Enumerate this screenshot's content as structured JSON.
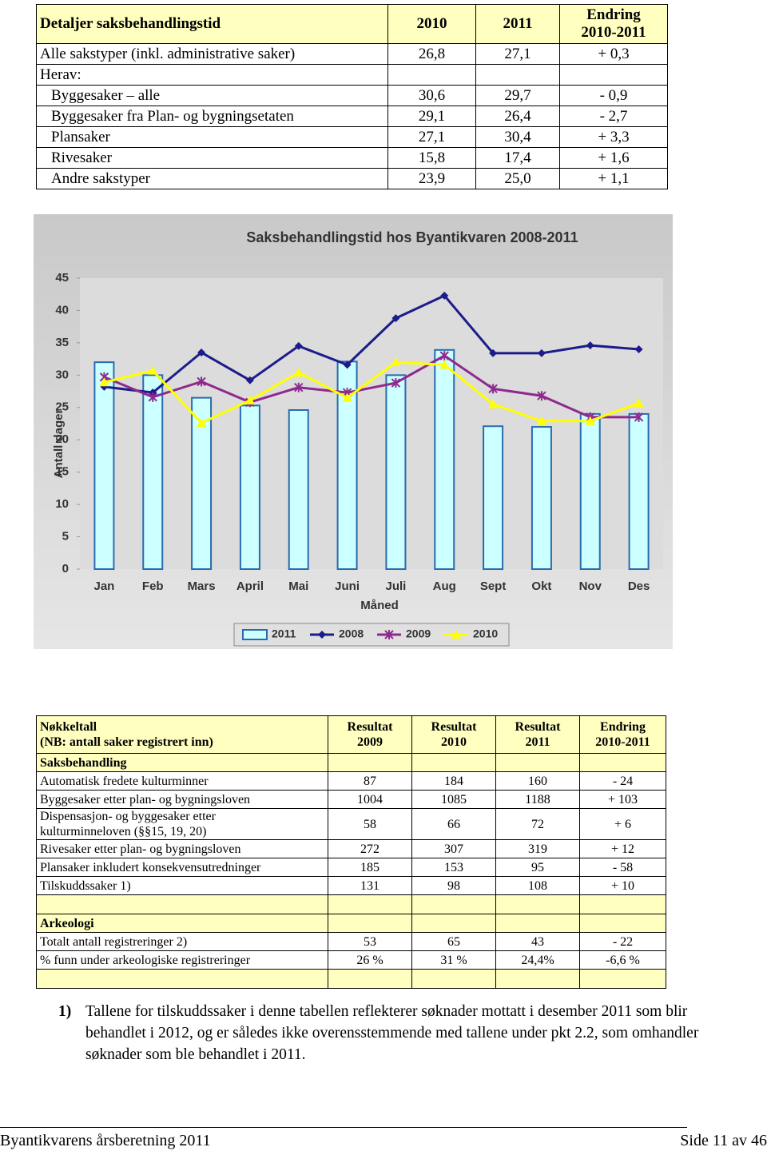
{
  "table1": {
    "header": [
      "Detaljer saksbehandlingstid",
      "2010",
      "2011",
      [
        "Endring",
        "2010-2011"
      ]
    ],
    "rows": [
      [
        "Alle sakstyper (inkl. administrative saker)",
        "26,8",
        "27,1",
        "+ 0,3"
      ],
      [
        "Herav:"
      ],
      [
        "Byggesaker – alle",
        "30,6",
        "29,7",
        "- 0,9"
      ],
      [
        "Byggesaker fra Plan- og bygningsetaten",
        "29,1",
        "26,4",
        "- 2,7"
      ],
      [
        "Plansaker",
        "27,1",
        "30,4",
        "+ 3,3"
      ],
      [
        "Rivesaker",
        "15,8",
        "17,4",
        "+ 1,6"
      ],
      [
        "Andre sakstyper",
        "23,9",
        "25,0",
        "+ 1,1"
      ]
    ]
  },
  "chart_data": {
    "type": "bar",
    "title": "Saksbehandlingstid hos Byantikvaren 2008-2011",
    "x_label": "Måned",
    "y_label": "Antall dager",
    "categories": [
      "Jan",
      "Feb",
      "Mars",
      "April",
      "Mai",
      "Juni",
      "Juli",
      "Aug",
      "Sept",
      "Okt",
      "Nov",
      "Des"
    ],
    "series": [
      {
        "name": "2011",
        "type": "bar",
        "color": "#ccffff",
        "stroke": "#2a6bb0",
        "values": [
          32,
          30,
          26.5,
          25.3,
          24.6,
          32.1,
          30,
          33.9,
          22.1,
          22,
          24,
          24
        ]
      },
      {
        "name": "2008",
        "type": "line",
        "marker": "diamond",
        "color": "#1c1c8a",
        "values": [
          28.2,
          27.3,
          33.5,
          29.2,
          34.5,
          31.6,
          38.8,
          42.3,
          33.4,
          33.4,
          34.6,
          34
        ]
      },
      {
        "name": "2009",
        "type": "line",
        "marker": "star",
        "color": "#8e2a8e",
        "values": [
          29.7,
          26.6,
          29,
          25.8,
          28.1,
          27.3,
          28.8,
          33,
          27.9,
          26.8,
          23.5,
          23.5
        ]
      },
      {
        "name": "2010",
        "type": "line",
        "marker": "triangle",
        "color": "#ffff00",
        "values": [
          28.9,
          30.7,
          22.6,
          26.1,
          30.4,
          26.5,
          32,
          31.6,
          25.5,
          22.9,
          22.9,
          25.7
        ]
      }
    ],
    "ylim": [
      0,
      45
    ],
    "yticks": [
      0,
      5,
      10,
      15,
      20,
      25,
      30,
      35,
      40,
      45
    ],
    "grid": false,
    "legend": "bottom"
  },
  "table2": {
    "header": [
      [
        "Nøkkeltall",
        "(NB: antall saker registrert inn)"
      ],
      [
        "Resultat",
        "2009"
      ],
      [
        "Resultat",
        "2010"
      ],
      [
        "Resultat",
        "2011"
      ],
      [
        "Endring",
        "2010-2011"
      ]
    ],
    "sections": [
      {
        "title": "Saksbehandling",
        "rows": [
          [
            "Automatisk fredete kulturminner",
            "87",
            "184",
            "160",
            "- 24"
          ],
          [
            "Byggesaker etter plan- og bygningsloven",
            "1004",
            "1085",
            "1188",
            "+ 103"
          ],
          [
            [
              "Dispensasjon- og byggesaker etter",
              "kulturminneloven (§§15, 19, 20)"
            ],
            "58",
            "66",
            "72",
            "+ 6"
          ],
          [
            "Rivesaker etter plan- og bygningsloven",
            "272",
            "307",
            "319",
            "+ 12"
          ],
          [
            "Plansaker inkludert konsekvensutredninger",
            "185",
            "153",
            "95",
            "- 58"
          ],
          [
            "Tilskuddssaker 1)",
            "131",
            "98",
            "108",
            "+ 10"
          ]
        ]
      },
      {
        "title": "Arkeologi",
        "rows": [
          [
            "Totalt antall registreringer 2)",
            "53",
            "65",
            "43",
            "- 22"
          ],
          [
            "% funn under arkeologiske registreringer",
            "26 %",
            "31 %",
            "24,4%",
            "-6,6 %"
          ]
        ]
      }
    ]
  },
  "footnote": {
    "mark": "1)",
    "text": "Tallene for tilskuddssaker i denne tabellen reflekterer søknader mottatt i desember 2011 som blir behandlet i 2012, og er således ikke overensstemmende med tallene under pkt 2.2, som omhandler søknader som ble behandlet i 2011."
  },
  "footer": {
    "left": "Byantikvarens årsberetning 2011",
    "right": "Side 11 av 46"
  }
}
